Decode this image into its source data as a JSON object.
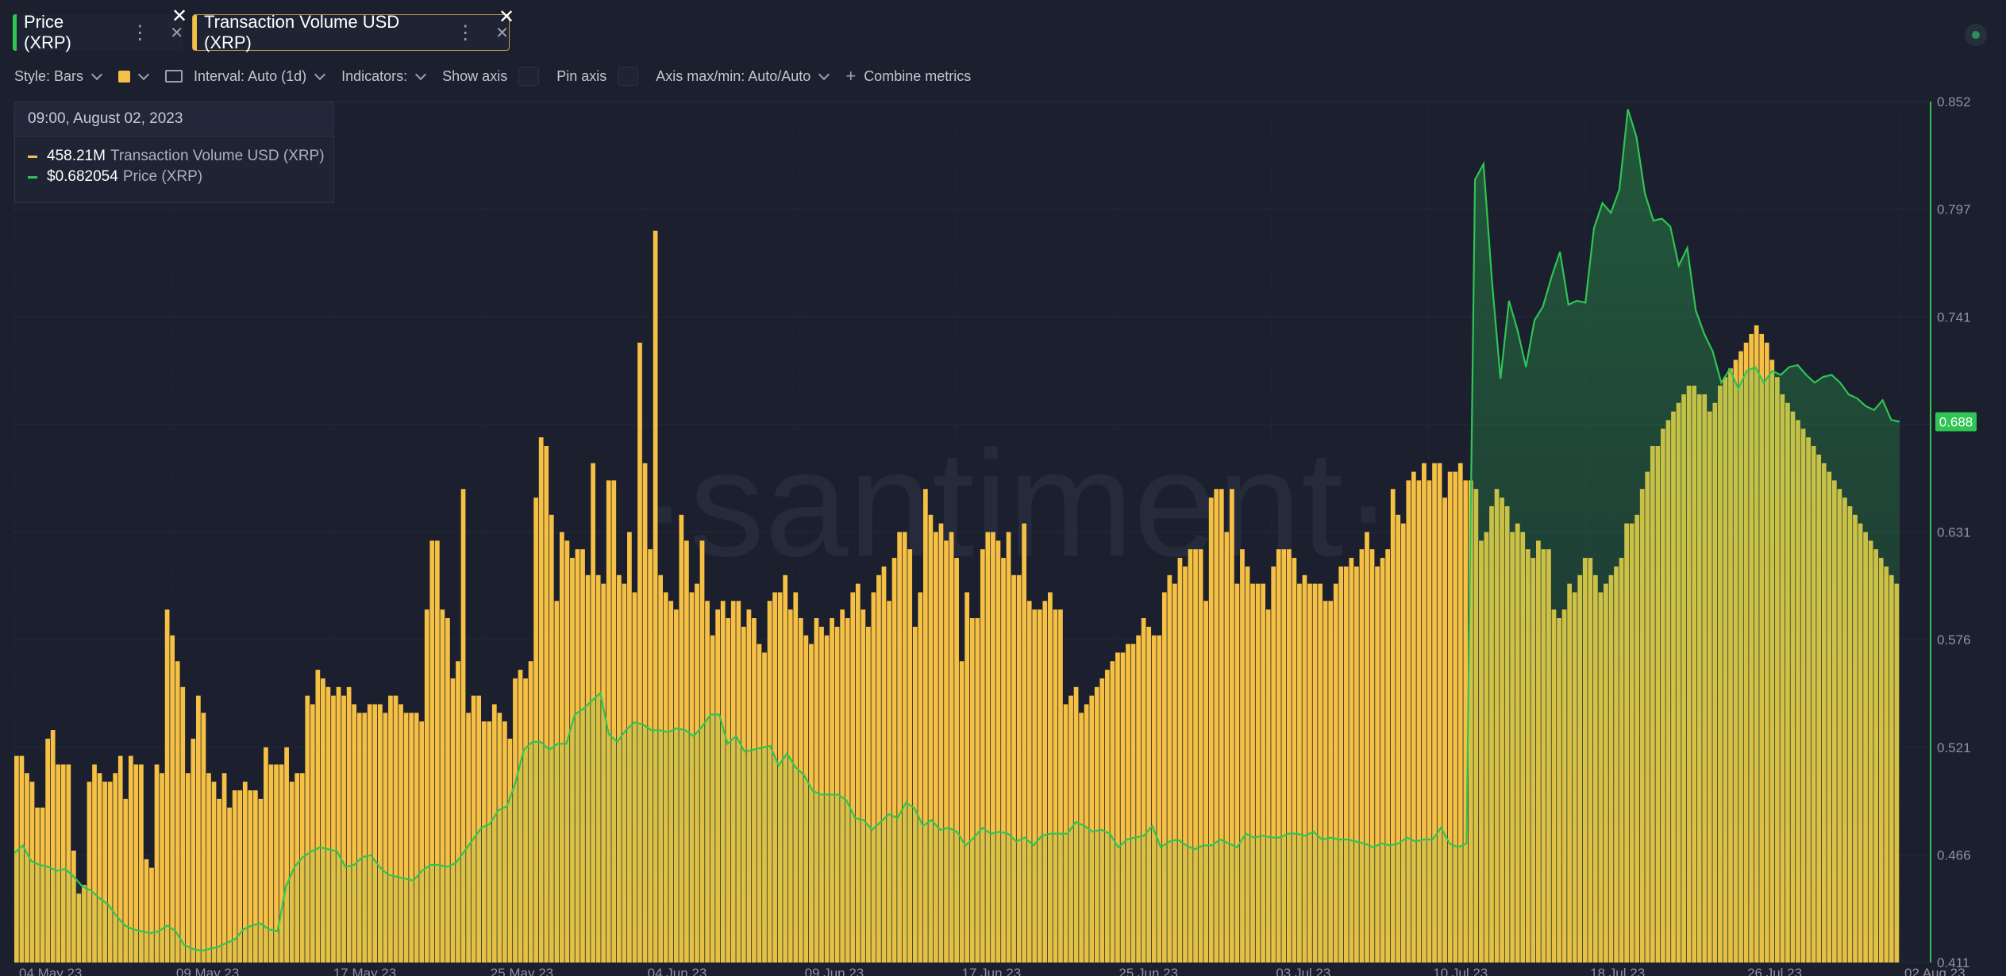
{
  "tabs": [
    {
      "label": "Price (XRP)",
      "color": "#2fc453"
    },
    {
      "label": "Transaction Volume USD (XRP)",
      "color": "#f5c043"
    }
  ],
  "toolbar": {
    "style": "Style: Bars",
    "interval": "Interval: Auto (1d)",
    "indicators": "Indicators:",
    "show_axis": "Show axis",
    "pin_axis": "Pin axis",
    "axis_maxmin": "Axis max/min: Auto/Auto",
    "combine": "Combine metrics",
    "combine_icon": "plus-icon"
  },
  "tooltip": {
    "date": "09:00, August 02, 2023",
    "rows": [
      {
        "value": "458.21M",
        "name": "Transaction Volume USD (XRP)",
        "color": "#f5c043"
      },
      {
        "value": "$0.682054",
        "name": "Price (XRP)",
        "color": "#2fc453"
      }
    ]
  },
  "watermark": "·santiment·",
  "chart_data": {
    "type": "bar",
    "x_axis_labels": [
      "04 May 23",
      "09 May 23",
      "17 May 23",
      "25 May 23",
      "04 Jun 23",
      "09 Jun 23",
      "17 Jun 23",
      "25 Jun 23",
      "03 Jul 23",
      "10 Jul 23",
      "18 Jul 23",
      "26 Jul 23",
      "02 Aug 23"
    ],
    "y_right_ticks": [
      "0.852",
      "0.797",
      "0.741",
      "0.686",
      "0.631",
      "0.576",
      "0.521",
      "0.466",
      "0.411"
    ],
    "ylim_price": [
      0.411,
      0.852
    ],
    "current_price_label": "0.688",
    "series": [
      {
        "name": "Transaction Volume USD (XRP)",
        "kind": "bar",
        "color": "#f5c043",
        "scale_max": 100,
        "values": [
          24,
          24,
          22,
          21,
          18,
          18,
          26,
          27,
          23,
          23,
          23,
          13,
          8,
          9,
          21,
          23,
          22,
          21,
          21,
          22,
          24,
          19,
          24,
          23,
          23,
          12,
          11,
          23,
          22,
          41,
          38,
          35,
          32,
          22,
          26,
          31,
          29,
          22,
          21,
          19,
          22,
          18,
          20,
          20,
          21,
          20,
          20,
          19,
          25,
          23,
          23,
          23,
          25,
          21,
          22,
          22,
          31,
          30,
          34,
          33,
          32,
          31,
          32,
          31,
          32,
          30,
          29,
          29,
          30,
          30,
          30,
          29,
          31,
          31,
          30,
          29,
          29,
          29,
          28,
          41,
          49,
          49,
          41,
          40,
          33,
          35,
          55,
          29,
          31,
          31,
          28,
          28,
          30,
          29,
          28,
          26,
          33,
          34,
          33,
          35,
          54,
          61,
          60,
          52,
          42,
          50,
          49,
          47,
          48,
          48,
          45,
          58,
          45,
          44,
          56,
          56,
          45,
          44,
          50,
          43,
          72,
          58,
          48,
          85,
          45,
          43,
          42,
          41,
          52,
          49,
          43,
          44,
          49,
          42,
          38,
          41,
          42,
          40,
          42,
          42,
          39,
          41,
          40,
          37,
          36,
          42,
          43,
          43,
          45,
          41,
          43,
          40,
          38,
          37,
          40,
          39,
          38,
          40,
          39,
          41,
          40,
          43,
          44,
          41,
          39,
          43,
          45,
          46,
          42,
          47,
          50,
          50,
          48,
          39,
          43,
          55,
          52,
          50,
          51,
          49,
          50,
          47,
          35,
          43,
          40,
          40,
          48,
          50,
          50,
          49,
          47,
          50,
          45,
          45,
          51,
          42,
          41,
          41,
          42,
          43,
          41,
          41,
          30,
          31,
          32,
          29,
          30,
          31,
          32,
          33,
          34,
          35,
          36,
          36,
          37,
          37,
          38,
          40,
          39,
          38,
          38,
          43,
          45,
          44,
          47,
          46,
          48,
          48,
          48,
          42,
          54,
          55,
          55,
          50,
          55,
          44,
          48,
          46,
          44,
          44,
          44,
          41,
          46,
          48,
          48,
          48,
          47,
          44,
          45,
          44,
          44,
          44,
          42,
          42,
          44,
          46,
          46,
          47,
          46,
          48,
          50,
          48,
          46,
          47,
          48,
          55,
          52,
          51,
          56,
          57,
          56,
          58,
          56,
          58,
          58,
          54,
          57,
          57,
          58,
          56,
          56,
          55,
          49,
          50,
          53,
          55,
          54,
          53,
          50,
          51,
          50,
          48,
          47,
          49,
          48,
          48,
          41,
          40,
          41,
          44,
          43,
          45,
          47,
          47,
          45,
          43,
          44,
          45,
          46,
          47,
          51,
          51,
          52,
          55,
          57,
          60,
          60,
          62,
          63,
          64,
          65,
          66,
          67,
          67,
          66,
          66,
          64,
          65,
          67,
          68,
          69,
          70,
          71,
          72,
          73,
          74,
          73,
          72,
          70,
          68,
          66,
          65,
          64,
          63,
          62,
          61,
          60,
          59,
          58,
          57,
          56,
          55,
          54,
          53,
          52,
          51,
          50,
          49,
          48,
          47,
          46,
          45,
          44
        ]
      },
      {
        "name": "Price (XRP)",
        "kind": "area-line",
        "color": "#2fc453",
        "values": [
          0.467,
          0.471,
          0.463,
          0.461,
          0.46,
          0.458,
          0.459,
          0.455,
          0.45,
          0.448,
          0.444,
          0.441,
          0.435,
          0.43,
          0.428,
          0.427,
          0.426,
          0.427,
          0.43,
          0.427,
          0.42,
          0.418,
          0.417,
          0.418,
          0.419,
          0.421,
          0.423,
          0.428,
          0.43,
          0.431,
          0.428,
          0.427,
          0.45,
          0.46,
          0.465,
          0.468,
          0.47,
          0.469,
          0.468,
          0.46,
          0.461,
          0.465,
          0.466,
          0.46,
          0.456,
          0.455,
          0.454,
          0.453,
          0.458,
          0.461,
          0.461,
          0.46,
          0.462,
          0.468,
          0.474,
          0.48,
          0.482,
          0.489,
          0.491,
          0.503,
          0.52,
          0.524,
          0.524,
          0.52,
          0.523,
          0.523,
          0.538,
          0.541,
          0.545,
          0.549,
          0.528,
          0.524,
          0.53,
          0.534,
          0.533,
          0.53,
          0.53,
          0.529,
          0.531,
          0.53,
          0.527,
          0.532,
          0.538,
          0.538,
          0.523,
          0.527,
          0.519,
          0.52,
          0.521,
          0.522,
          0.512,
          0.518,
          0.511,
          0.507,
          0.499,
          0.497,
          0.497,
          0.497,
          0.494,
          0.485,
          0.484,
          0.479,
          0.483,
          0.487,
          0.485,
          0.493,
          0.49,
          0.481,
          0.484,
          0.479,
          0.48,
          0.478,
          0.471,
          0.475,
          0.48,
          0.477,
          0.478,
          0.477,
          0.473,
          0.475,
          0.471,
          0.476,
          0.477,
          0.477,
          0.477,
          0.483,
          0.481,
          0.478,
          0.479,
          0.477,
          0.47,
          0.474,
          0.475,
          0.476,
          0.481,
          0.47,
          0.473,
          0.474,
          0.471,
          0.469,
          0.471,
          0.471,
          0.474,
          0.472,
          0.47,
          0.477,
          0.475,
          0.476,
          0.475,
          0.475,
          0.477,
          0.477,
          0.476,
          0.478,
          0.474,
          0.475,
          0.474,
          0.474,
          0.473,
          0.472,
          0.47,
          0.472,
          0.471,
          0.472,
          0.475,
          0.473,
          0.474,
          0.474,
          0.48,
          0.472,
          0.47,
          0.472,
          0.812,
          0.82,
          0.76,
          0.71,
          0.75,
          0.735,
          0.716,
          0.74,
          0.747,
          0.762,
          0.775,
          0.748,
          0.75,
          0.749,
          0.787,
          0.8,
          0.795,
          0.807,
          0.848,
          0.834,
          0.805,
          0.791,
          0.792,
          0.788,
          0.768,
          0.777,
          0.745,
          0.733,
          0.724,
          0.708,
          0.715,
          0.705,
          0.714,
          0.716,
          0.708,
          0.714,
          0.712,
          0.716,
          0.717,
          0.712,
          0.708,
          0.711,
          0.712,
          0.708,
          0.702,
          0.7,
          0.696,
          0.694,
          0.699,
          0.689,
          0.688
        ]
      }
    ]
  }
}
